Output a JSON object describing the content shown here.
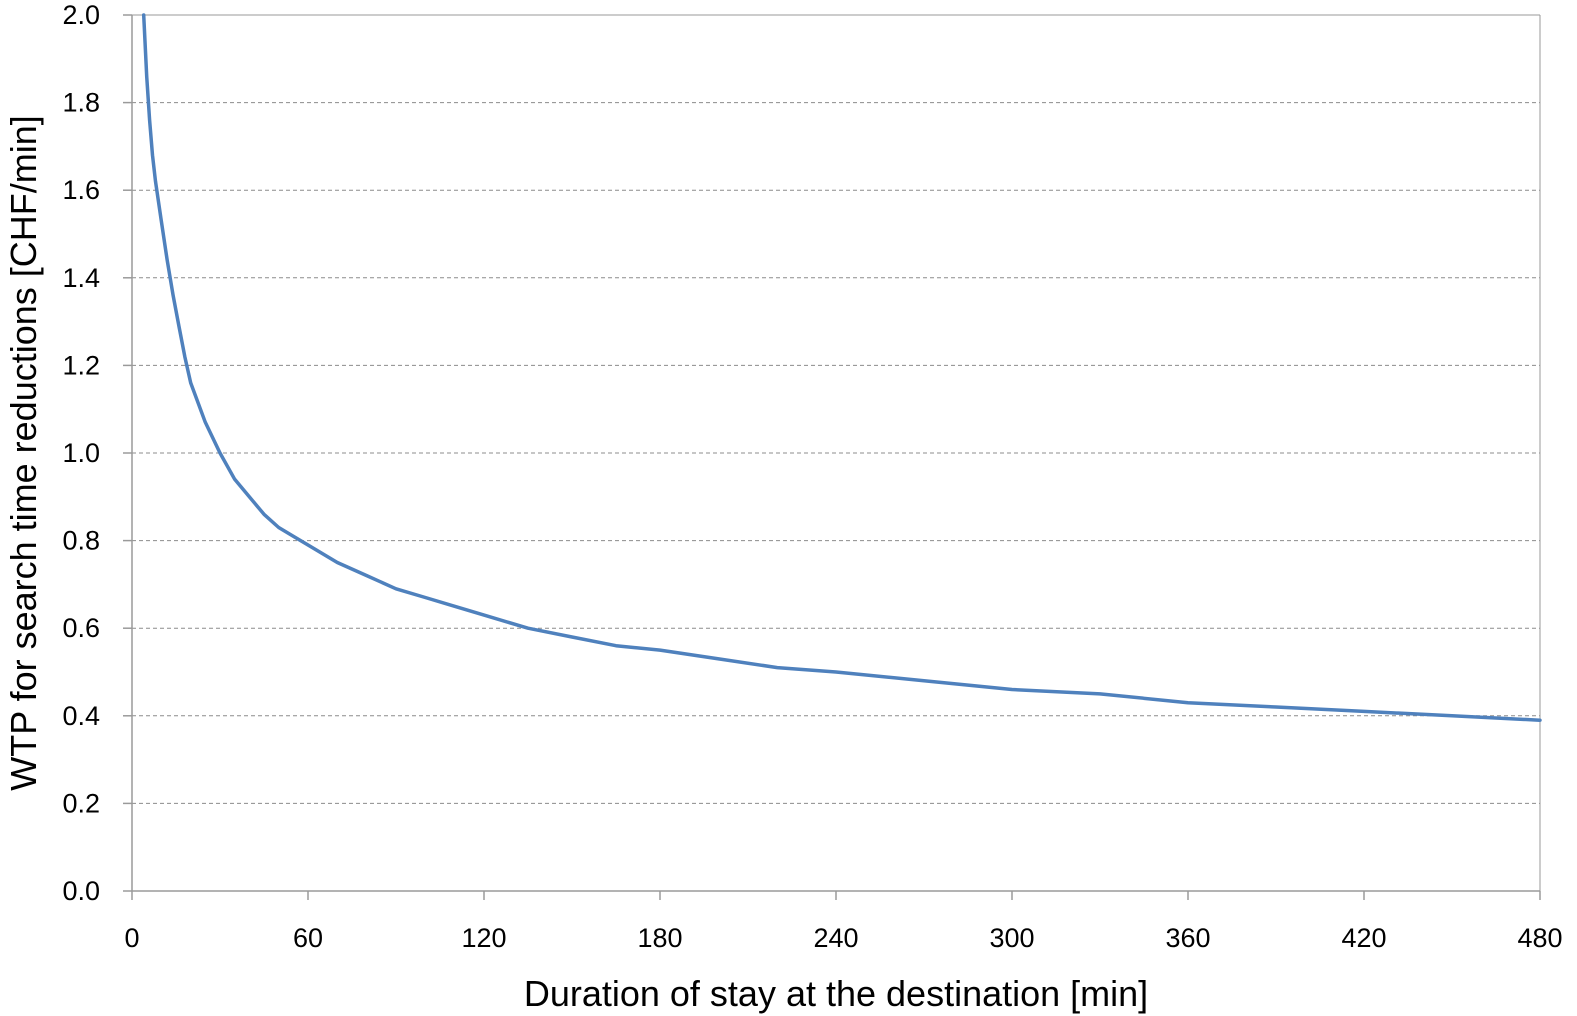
{
  "chart_data": {
    "type": "line",
    "title": "",
    "xlabel": "Duration of stay at the destination [min]",
    "ylabel": "WTP for search time reductions [CHF/min]",
    "xlim": [
      0,
      480
    ],
    "ylim": [
      0,
      2.0
    ],
    "x_ticks": [
      "0",
      "60",
      "120",
      "180",
      "240",
      "300",
      "360",
      "420",
      "480"
    ],
    "y_ticks": [
      "0.0",
      "0.2",
      "0.4",
      "0.6",
      "0.8",
      "1.0",
      "1.2",
      "1.4",
      "1.6",
      "1.8",
      "2.0"
    ],
    "grid": "horizontal dashed",
    "legend": "none",
    "series": [
      {
        "color": "#4f81bd",
        "x": [
          4,
          5,
          6,
          7,
          8,
          10,
          12,
          14,
          16,
          18,
          20,
          25,
          30,
          35,
          40,
          45,
          50,
          55,
          60,
          70,
          80,
          90,
          100,
          110,
          120,
          135,
          150,
          165,
          180,
          200,
          220,
          240,
          270,
          300,
          330,
          360,
          390,
          420,
          450,
          480
        ],
        "y": [
          2.0,
          1.86,
          1.76,
          1.68,
          1.62,
          1.53,
          1.44,
          1.36,
          1.29,
          1.22,
          1.16,
          1.07,
          1.0,
          0.94,
          0.9,
          0.86,
          0.83,
          0.81,
          0.79,
          0.75,
          0.72,
          0.69,
          0.67,
          0.65,
          0.63,
          0.6,
          0.58,
          0.56,
          0.55,
          0.53,
          0.51,
          0.5,
          0.48,
          0.46,
          0.45,
          0.43,
          0.42,
          0.41,
          0.4,
          0.39
        ]
      }
    ]
  }
}
